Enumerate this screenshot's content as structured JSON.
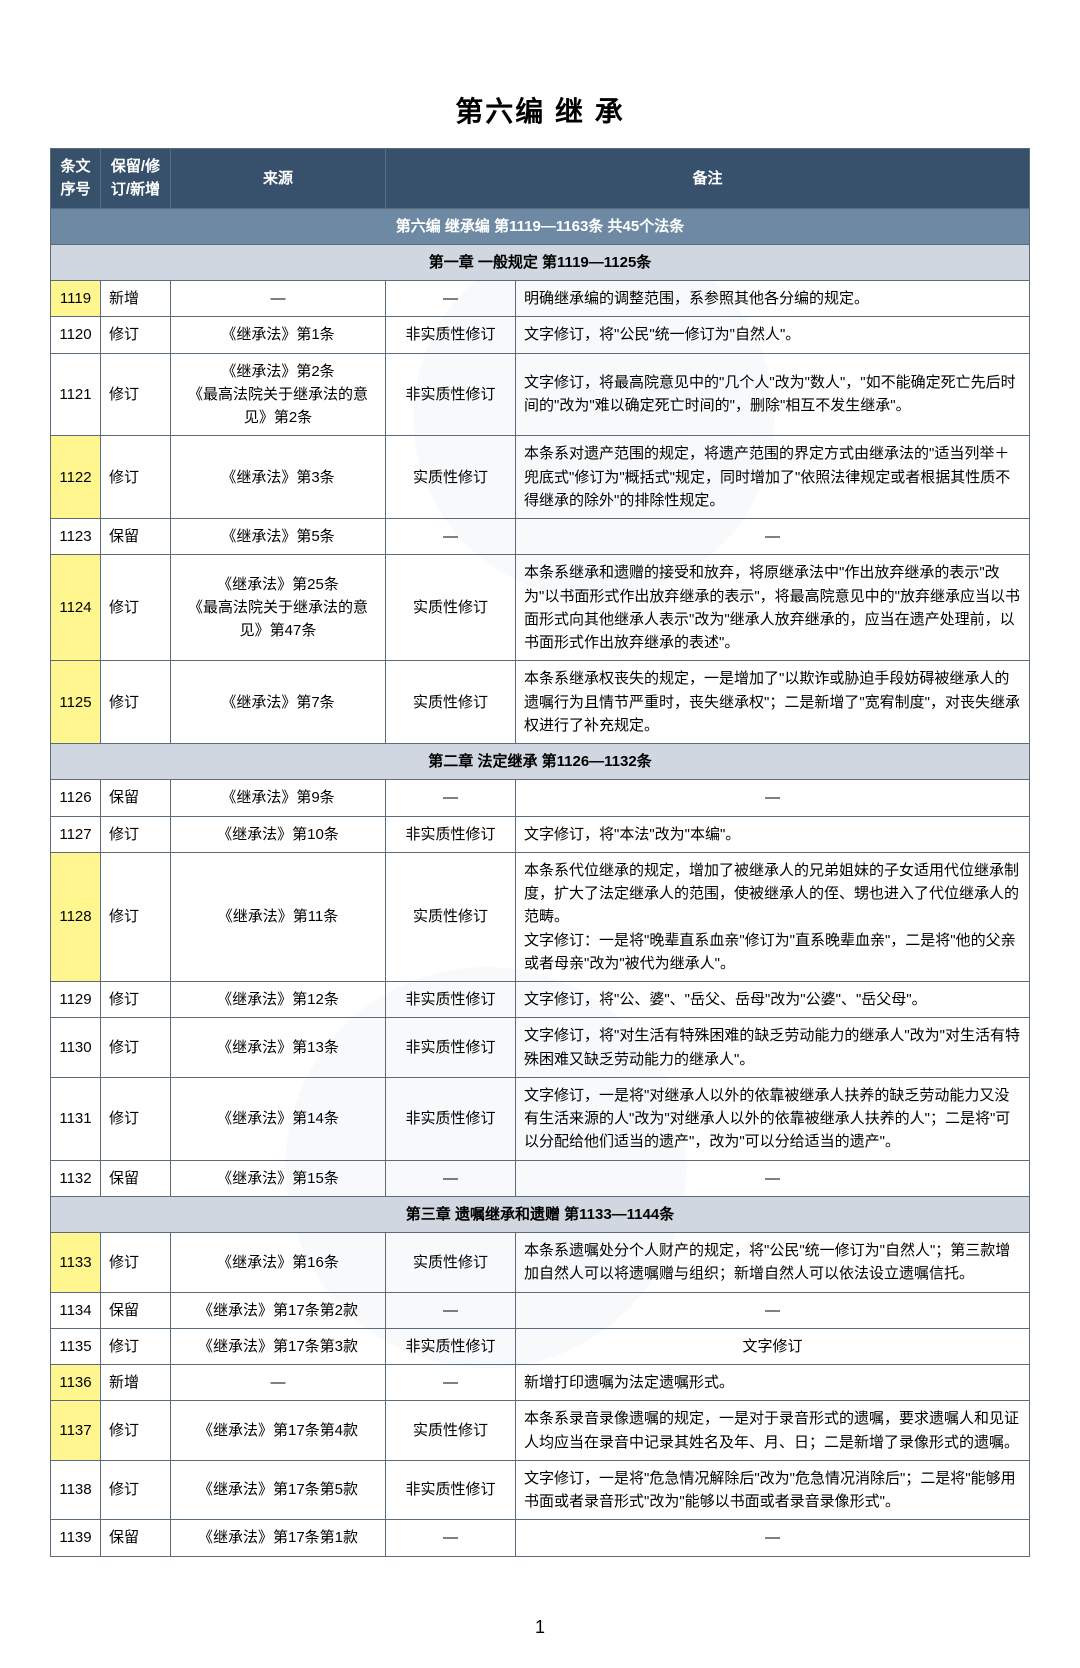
{
  "title": "第六编  继 承",
  "page_number": "1",
  "colors": {
    "header_bg": "#37506b",
    "section_bg": "#6d89a4",
    "chapter_bg": "#d0d7e0",
    "border": "#5b6b7a",
    "highlight": "#fff68f",
    "text": "#000000",
    "header_text": "#ffffff"
  },
  "columns": {
    "c1": "条文序号",
    "c2": "保留/修订/新增",
    "c3": "来源",
    "c4_5": "备注"
  },
  "section_header": "第六编    继承编    第1119—1163条 共45个法条",
  "chapters": {
    "ch1": "第一章 一般规定 第1119—1125条",
    "ch2": "第二章 法定继承 第1126—1132条",
    "ch3": "第三章 遗嘱继承和遗赠 第1133—1144条"
  },
  "rows": {
    "r1119": {
      "num": "1119",
      "type": "新增",
      "src": "—",
      "rev": "—",
      "note": "明确继承编的调整范围，系参照其他各分编的规定。",
      "hl": true
    },
    "r1120": {
      "num": "1120",
      "type": "修订",
      "src": "《继承法》第1条",
      "rev": "非实质性修订",
      "note": "文字修订，将\"公民\"统一修订为\"自然人\"。"
    },
    "r1121": {
      "num": "1121",
      "type": "修订",
      "src": "《继承法》第2条\n《最高法院关于继承法的意见》第2条",
      "rev": "非实质性修订",
      "note": "文字修订，将最高院意见中的\"几个人\"改为\"数人\"，\"如不能确定死亡先后时间的\"改为\"难以确定死亡时间的\"，删除\"相互不发生继承\"。"
    },
    "r1122": {
      "num": "1122",
      "type": "修订",
      "src": "《继承法》第3条",
      "rev": "实质性修订",
      "note": "本条系对遗产范围的规定，将遗产范围的界定方式由继承法的\"适当列举＋兜底式\"修订为\"概括式\"规定，同时增加了\"依照法律规定或者根据其性质不得继承的除外\"的排除性规定。",
      "hl": true
    },
    "r1123": {
      "num": "1123",
      "type": "保留",
      "src": "《继承法》第5条",
      "rev": "—",
      "note": "—"
    },
    "r1124": {
      "num": "1124",
      "type": "修订",
      "src": "《继承法》第25条\n《最高法院关于继承法的意见》第47条",
      "rev": "实质性修订",
      "note": "本条系继承和遗赠的接受和放弃，将原继承法中\"作出放弃继承的表示\"改为\"以书面形式作出放弃继承的表示\"，将最高院意见中的\"放弃继承应当以书面形式向其他继承人表示\"改为\"继承人放弃继承的，应当在遗产处理前，以书面形式作出放弃继承的表述\"。",
      "hl": true
    },
    "r1125": {
      "num": "1125",
      "type": "修订",
      "src": "《继承法》第7条",
      "rev": "实质性修订",
      "note": "本条系继承权丧失的规定，一是增加了\"以欺诈或胁迫手段妨碍被继承人的遗嘱行为且情节严重时，丧失继承权\"；二是新增了\"宽宥制度\"，对丧失继承权进行了补充规定。",
      "hl": true
    },
    "r1126": {
      "num": "1126",
      "type": "保留",
      "src": "《继承法》第9条",
      "rev": "—",
      "note": "—"
    },
    "r1127": {
      "num": "1127",
      "type": "修订",
      "src": "《继承法》第10条",
      "rev": "非实质性修订",
      "note": "文字修订，将\"本法\"改为\"本编\"。"
    },
    "r1128": {
      "num": "1128",
      "type": "修订",
      "src": "《继承法》第11条",
      "rev": "实质性修订",
      "note": "本条系代位继承的规定，增加了被继承人的兄弟姐妹的子女适用代位继承制度，扩大了法定继承人的范围，使被继承人的侄、甥也进入了代位继承人的范畴。\n文字修订：一是将\"晚辈直系血亲\"修订为\"直系晚辈血亲\"，二是将\"他的父亲或者母亲\"改为\"被代为继承人\"。",
      "hl": true
    },
    "r1129": {
      "num": "1129",
      "type": "修订",
      "src": "《继承法》第12条",
      "rev": "非实质性修订",
      "note": "文字修订，将\"公、婆\"、\"岳父、岳母\"改为\"公婆\"、\"岳父母\"。"
    },
    "r1130": {
      "num": "1130",
      "type": "修订",
      "src": "《继承法》第13条",
      "rev": "非实质性修订",
      "note": "文字修订，将\"对生活有特殊困难的缺乏劳动能力的继承人\"改为\"对生活有特殊困难又缺乏劳动能力的继承人\"。"
    },
    "r1131": {
      "num": "1131",
      "type": "修订",
      "src": "《继承法》第14条",
      "rev": "非实质性修订",
      "note": "文字修订，一是将\"对继承人以外的依靠被继承人扶养的缺乏劳动能力又没有生活来源的人\"改为\"对继承人以外的依靠被继承人扶养的人\"；二是将\"可以分配给他们适当的遗产\"，改为\"可以分给适当的遗产\"。"
    },
    "r1132": {
      "num": "1132",
      "type": "保留",
      "src": "《继承法》第15条",
      "rev": "—",
      "note": "—"
    },
    "r1133": {
      "num": "1133",
      "type": "修订",
      "src": "《继承法》第16条",
      "rev": "实质性修订",
      "note": "本条系遗嘱处分个人财产的规定，将\"公民\"统一修订为\"自然人\"；第三款增加自然人可以将遗嘱赠与组织；新增自然人可以依法设立遗嘱信托。",
      "hl": true
    },
    "r1134": {
      "num": "1134",
      "type": "保留",
      "src": "《继承法》第17条第2款",
      "rev": "—",
      "note": "—"
    },
    "r1135": {
      "num": "1135",
      "type": "修订",
      "src": "《继承法》第17条第3款",
      "rev": "非实质性修订",
      "note": "文字修订",
      "note_center": true
    },
    "r1136": {
      "num": "1136",
      "type": "新增",
      "src": "—",
      "rev": "—",
      "note": "新增打印遗嘱为法定遗嘱形式。",
      "hl": true
    },
    "r1137": {
      "num": "1137",
      "type": "修订",
      "src": "《继承法》第17条第4款",
      "rev": "实质性修订",
      "note": "本条系录音录像遗嘱的规定，一是对于录音形式的遗嘱，要求遗嘱人和见证人均应当在录音中记录其姓名及年、月、日；二是新增了录像形式的遗嘱。",
      "hl": true
    },
    "r1138": {
      "num": "1138",
      "type": "修订",
      "src": "《继承法》第17条第5款",
      "rev": "非实质性修订",
      "note": "文字修订，一是将\"危急情况解除后\"改为\"危急情况消除后\"；二是将\"能够用书面或者录音形式\"改为\"能够以书面或者录音录像形式\"。"
    },
    "r1139": {
      "num": "1139",
      "type": "保留",
      "src": "《继承法》第17条第1款",
      "rev": "—",
      "note": "—"
    }
  }
}
